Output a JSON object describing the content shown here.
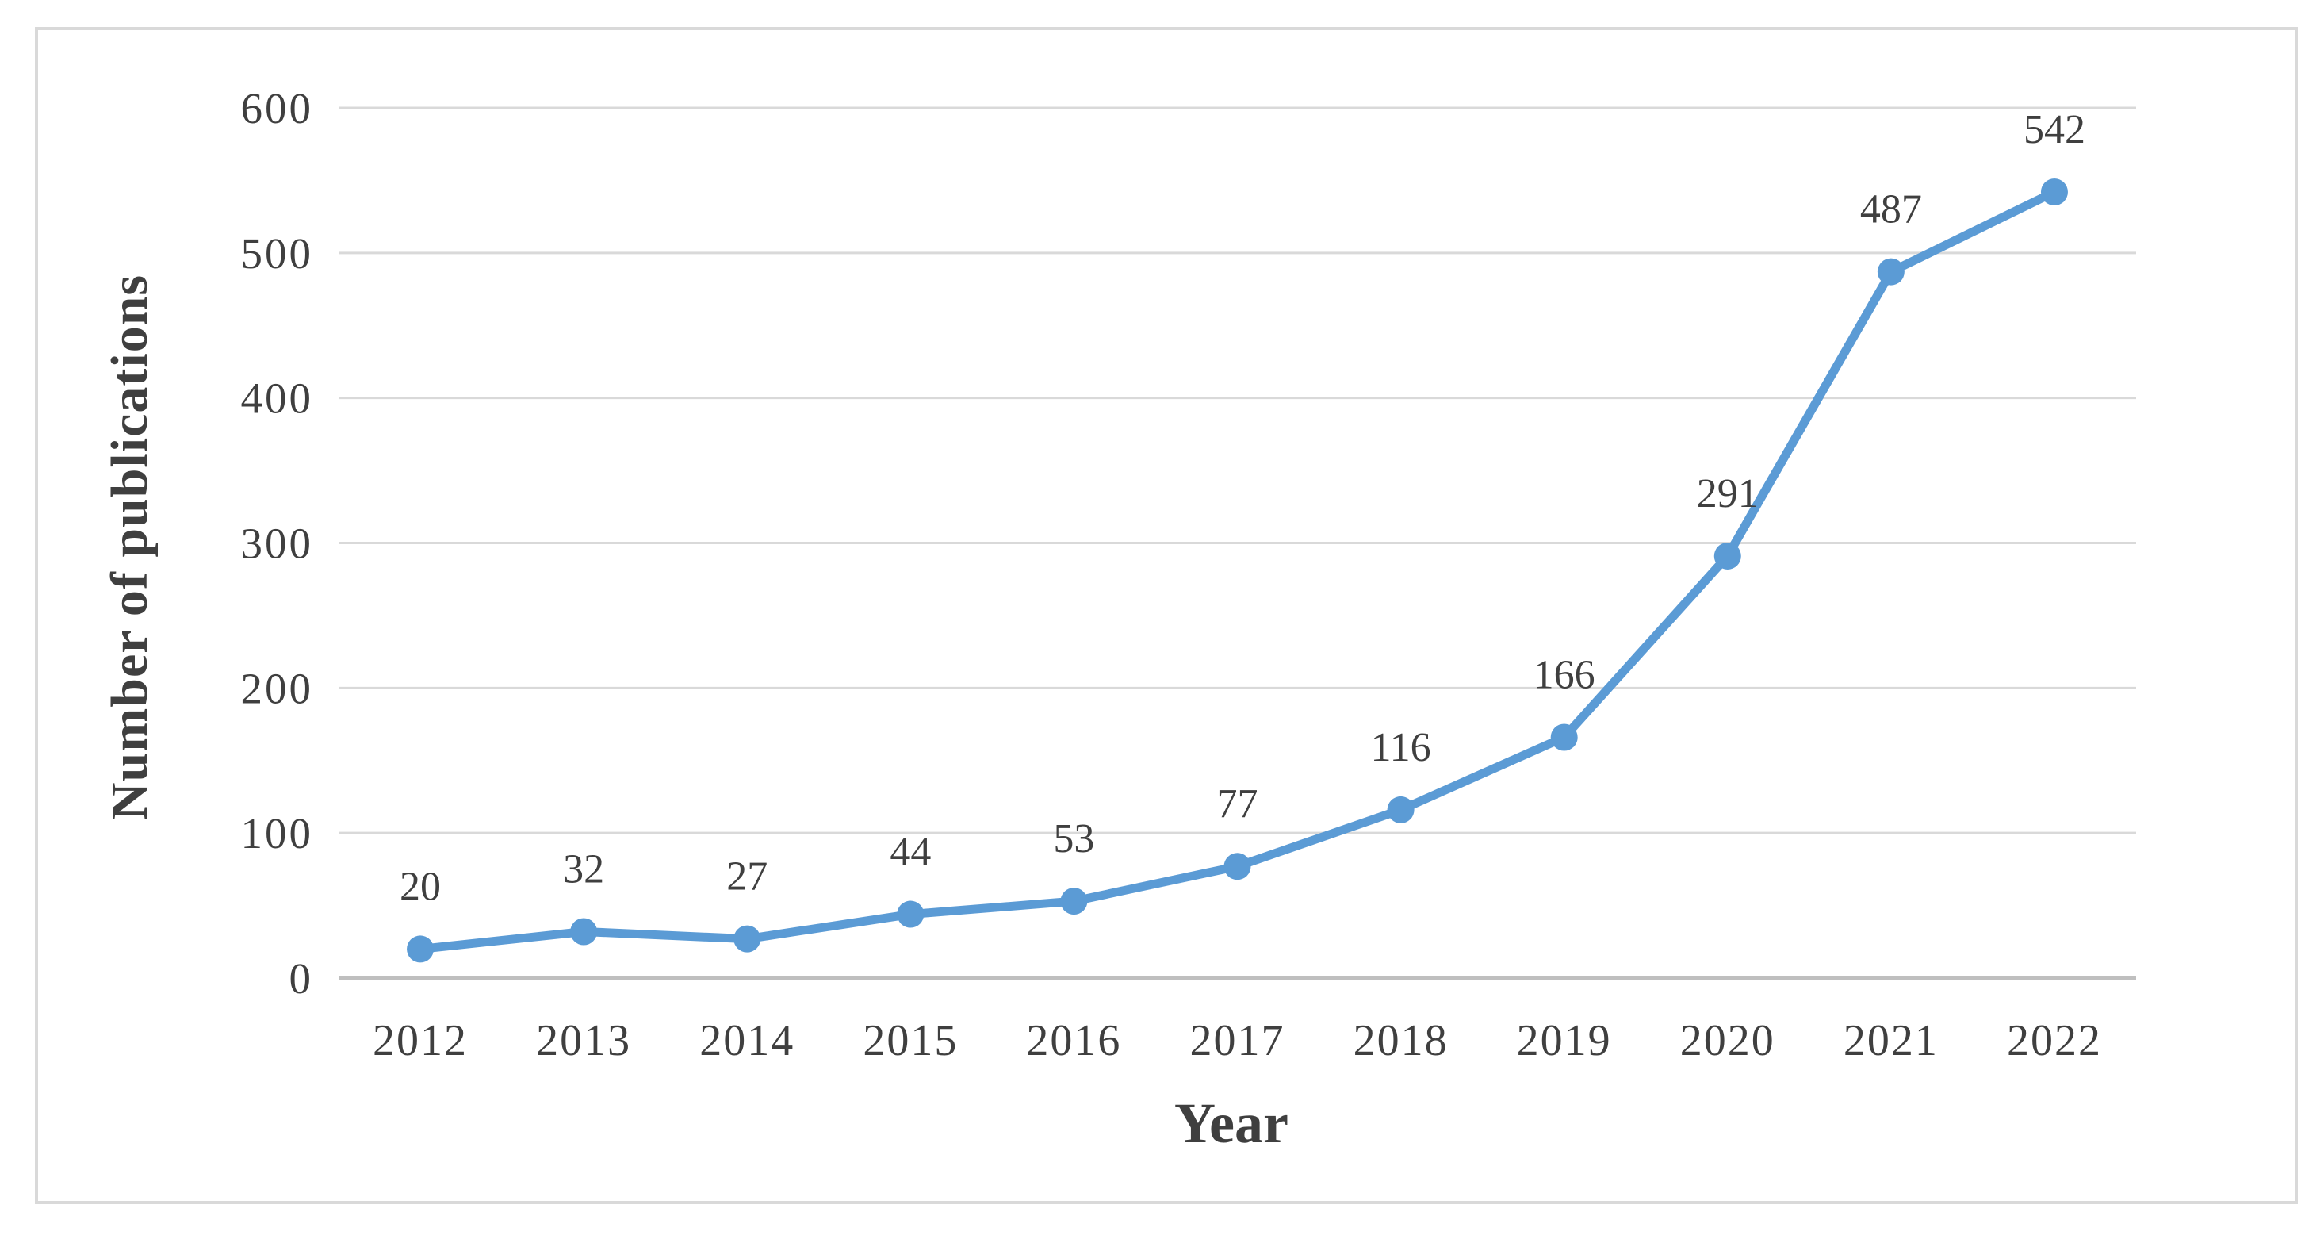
{
  "chart_data": {
    "type": "line",
    "title": "",
    "xlabel": "Year",
    "ylabel": "Number of publications",
    "categories": [
      "2012",
      "2013",
      "2014",
      "2015",
      "2016",
      "2017",
      "2018",
      "2019",
      "2020",
      "2021",
      "2022"
    ],
    "values": [
      20,
      32,
      27,
      44,
      53,
      77,
      116,
      166,
      291,
      487,
      542
    ],
    "data_labels": [
      "20",
      "32",
      "27",
      "44",
      "53",
      "77",
      "116",
      "166",
      "291",
      "487",
      "542"
    ],
    "ylim": [
      0,
      600
    ],
    "yticks": [
      0,
      100,
      200,
      300,
      400,
      500,
      600
    ],
    "ytick_labels": [
      "0",
      "100",
      "200",
      "300",
      "400",
      "500",
      "600"
    ],
    "grid": "horizontal-on",
    "legend": "none",
    "colors": {
      "line": "#5B9BD5",
      "marker": "#5B9BD5",
      "gridline": "#D9D9D9",
      "axis_line": "#BFBFBF",
      "text": "#3F3F3F",
      "frame_border": "#D9D9D9",
      "background": "#FFFFFF"
    }
  }
}
